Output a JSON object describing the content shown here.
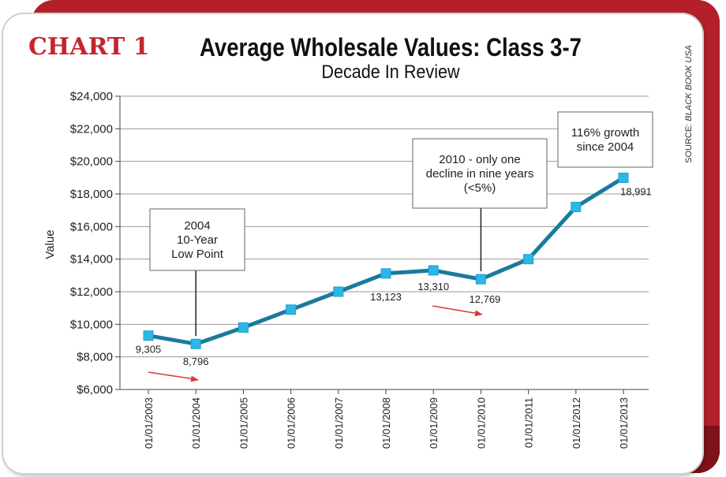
{
  "header": {
    "chart_label": "CHART 1",
    "title": "Average Wholesale Values: Class 3-7",
    "subtitle": "Decade In Review",
    "source_prefix": "SOURCE: ",
    "source_name": "BLACK BOOK USA"
  },
  "colors": {
    "line": "#1a7a9c",
    "marker": "#2ab8e8",
    "accent_red": "#c3252f",
    "arrow": "#d93a3a",
    "grid": "#9a9a9a"
  },
  "chart_data": {
    "type": "line",
    "title": "Average Wholesale Values: Class 3-7",
    "subtitle": "Decade In Review",
    "xlabel": "",
    "ylabel": "Value",
    "ylim": [
      6000,
      24000
    ],
    "yticks": [
      6000,
      8000,
      10000,
      12000,
      14000,
      16000,
      18000,
      20000,
      22000,
      24000
    ],
    "ytick_labels": [
      "$6,000",
      "$8,000",
      "$10,000",
      "$12,000",
      "$14,000",
      "$16,000",
      "$18,000",
      "$20,000",
      "$22,000",
      "$24,000"
    ],
    "grid": true,
    "legend": "none",
    "categories": [
      "01/01/2003",
      "01/01/2004",
      "01/01/2005",
      "01/01/2006",
      "01/01/2007",
      "01/01/2008",
      "01/01/2009",
      "01/01/2010",
      "01/01/2011",
      "01/01/2012",
      "01/01/2013"
    ],
    "values": [
      9305,
      8796,
      9800,
      10900,
      12000,
      13123,
      13310,
      12769,
      14000,
      17200,
      18991
    ],
    "data_labels": [
      {
        "index": 0,
        "text": "9,305"
      },
      {
        "index": 1,
        "text": "8,796"
      },
      {
        "index": 5,
        "text": "13,123"
      },
      {
        "index": 6,
        "text": "13,310"
      },
      {
        "index": 7,
        "text": "12,769"
      },
      {
        "index": 10,
        "text": "18,991"
      }
    ],
    "annotations": [
      {
        "index": 1,
        "lines": [
          "2004",
          "10-Year",
          "Low Point"
        ]
      },
      {
        "index": 7,
        "lines": [
          "2010 - only one",
          "decline in nine years",
          "(<5%)"
        ]
      },
      {
        "index": 10,
        "lines": [
          "116% growth",
          "since 2004"
        ]
      }
    ],
    "arrows": [
      {
        "near_index": 1
      },
      {
        "near_index": 7
      }
    ]
  }
}
